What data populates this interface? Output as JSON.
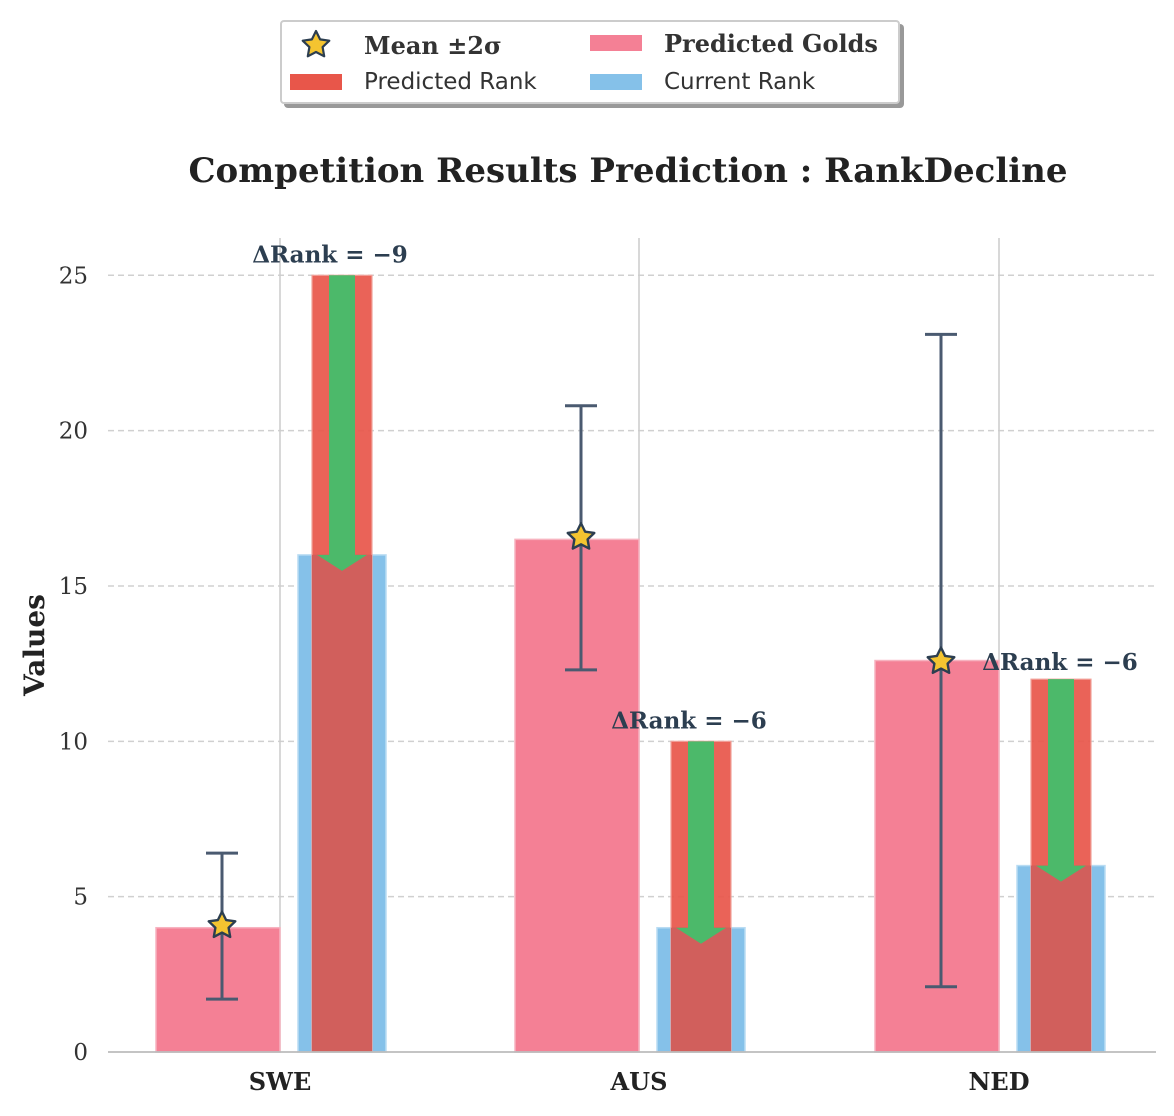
{
  "legend": {
    "mean_label": "Mean ±2σ",
    "golds_label": "Predicted Golds",
    "predicted_rank_label": "Predicted Rank",
    "current_rank_label": "Current Rank"
  },
  "colors": {
    "predicted_golds": "#f48095",
    "predicted_rank": "#e8564a",
    "current_rank": "#85c1e9",
    "arrow": "#4cb96a",
    "error_bar": "#4a5a70",
    "star_fill": "#f4c430",
    "star_edge": "#2c3e50",
    "annotation": "#2c3e50"
  },
  "chart_data": {
    "type": "bar",
    "title": "Competition Results Prediction : RankDecline",
    "xlabel": "",
    "ylabel": "Values",
    "ylim": [
      0,
      26.2
    ],
    "yticks": [
      0,
      5,
      10,
      15,
      20,
      25
    ],
    "grid": "y-dashed",
    "legend_position": "top-center",
    "categories": [
      "SWE",
      "AUS",
      "NED"
    ],
    "series": [
      {
        "name": "Predicted Golds",
        "values": [
          4,
          16.5,
          12.6
        ]
      },
      {
        "name": "Predicted Rank",
        "values": [
          25,
          10,
          12
        ]
      },
      {
        "name": "Current Rank",
        "values": [
          16,
          4,
          6
        ]
      }
    ],
    "mean": [
      4.1,
      16.6,
      12.6
    ],
    "error_low": [
      1.7,
      12.3,
      2.1
    ],
    "error_high": [
      6.4,
      20.8,
      23.1
    ],
    "annotations": [
      {
        "category": "SWE",
        "text": "ΔRank = −9"
      },
      {
        "category": "AUS",
        "text": "ΔRank = −6"
      },
      {
        "category": "NED",
        "text": "ΔRank = −6"
      }
    ]
  }
}
